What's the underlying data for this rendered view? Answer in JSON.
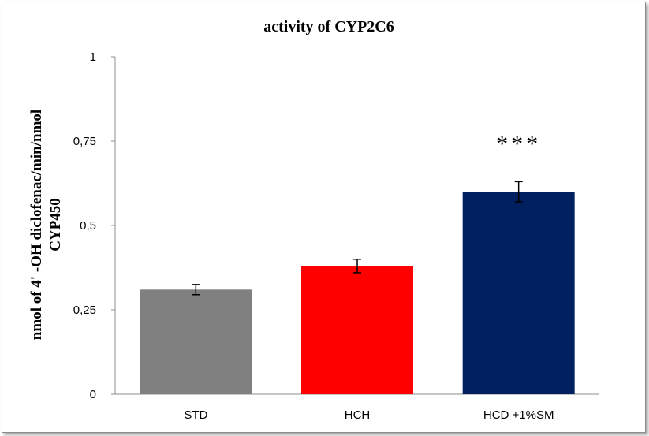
{
  "chart_data": {
    "type": "bar",
    "title": "activity of CYP2C6",
    "ylabel_line1": "nmol of 4' -OH diclofenac/min/nmol",
    "ylabel_line2": "CYP450",
    "xlabel": "",
    "categories": [
      "STD",
      "HCH",
      "HCD +1%SM"
    ],
    "values": [
      0.31,
      0.38,
      0.6
    ],
    "errors": [
      0.015,
      0.02,
      0.03
    ],
    "colors": [
      "#808080",
      "#ff0000",
      "#002060"
    ],
    "ylim": [
      0,
      1
    ],
    "yticks": [
      0,
      0.25,
      0.5,
      0.75,
      1
    ],
    "ytick_labels": [
      "0",
      "0,25",
      "0,5",
      "0,75",
      "1"
    ],
    "annotations": [
      "",
      "",
      "***"
    ],
    "grid": false,
    "legend": "none"
  }
}
